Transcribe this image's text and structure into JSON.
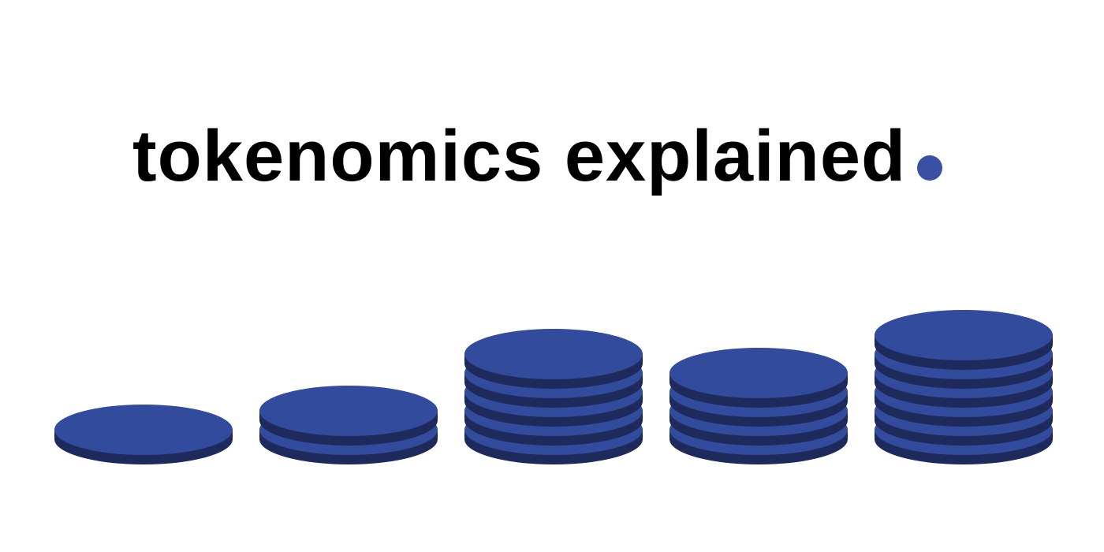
{
  "title": {
    "text": "tokenomics explained",
    "dot_color": "#3b4fa3"
  },
  "colors": {
    "coin_top": "#334b9c",
    "coin_side": "#1f2a5c",
    "background": "#ffffff"
  },
  "stacks": [
    {
      "coins": 1
    },
    {
      "coins": 2
    },
    {
      "coins": 5
    },
    {
      "coins": 4
    },
    {
      "coins": 6
    }
  ]
}
